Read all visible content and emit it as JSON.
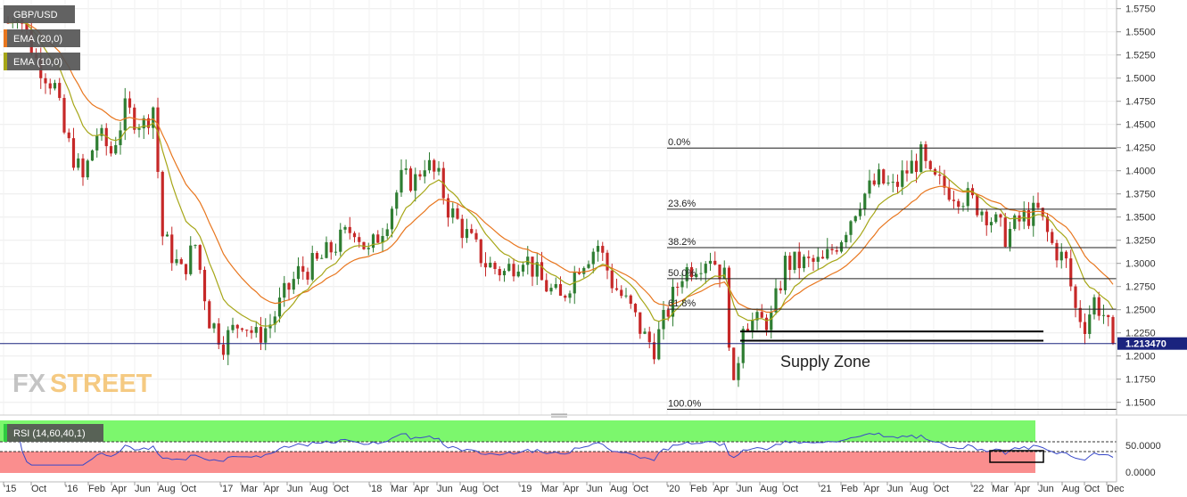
{
  "chart_data": {
    "type": "candlestick",
    "title": "GBP/USD",
    "indicators": [
      {
        "name": "EMA (20,0)",
        "color": "#e8761e"
      },
      {
        "name": "EMA (10,0)",
        "color": "#a6a617"
      }
    ],
    "price_axis": {
      "ticks": [
        "1.5750",
        "1.5500",
        "1.5250",
        "1.5000",
        "1.4750",
        "1.4500",
        "1.4250",
        "1.4000",
        "1.3750",
        "1.3500",
        "1.3250",
        "1.3000",
        "1.2750",
        "1.2500",
        "1.2250",
        "1.2000",
        "1.1750",
        "1.1500"
      ],
      "ylim": [
        1.135,
        1.585
      ],
      "current_price": "1.213470",
      "current_value": 1.21347
    },
    "time_axis": {
      "ticks": [
        "'15",
        "Oct",
        "'16",
        "Feb",
        "Apr",
        "Jun",
        "Aug",
        "Oct",
        "'17",
        "Mar",
        "Apr",
        "Jun",
        "Aug",
        "Oct",
        "'18",
        "Mar",
        "Apr",
        "Jun",
        "Aug",
        "Oct",
        "'19",
        "Mar",
        "Apr",
        "Jun",
        "Aug",
        "Oct",
        "'20",
        "Feb",
        "Apr",
        "Jun",
        "Aug",
        "Oct",
        "'21",
        "Feb",
        "Apr",
        "Jun",
        "Aug",
        "Oct",
        "'22",
        "Mar",
        "Apr",
        "Jun",
        "Aug",
        "Oct",
        "Dec"
      ]
    },
    "price_path": [
      {
        "t": 0,
        "p": 1.56
      },
      {
        "t": 2,
        "p": 1.575
      },
      {
        "t": 6,
        "p": 1.52
      },
      {
        "t": 10,
        "p": 1.49
      },
      {
        "t": 12,
        "p": 1.44
      },
      {
        "t": 16,
        "p": 1.39
      },
      {
        "t": 19,
        "p": 1.44
      },
      {
        "t": 22,
        "p": 1.42
      },
      {
        "t": 25,
        "p": 1.465
      },
      {
        "t": 29,
        "p": 1.45
      },
      {
        "t": 31,
        "p": 1.47
      },
      {
        "t": 33,
        "p": 1.33
      },
      {
        "t": 37,
        "p": 1.29
      },
      {
        "t": 40,
        "p": 1.32
      },
      {
        "t": 43,
        "p": 1.24
      },
      {
        "t": 46,
        "p": 1.215
      },
      {
        "t": 50,
        "p": 1.24
      },
      {
        "t": 53,
        "p": 1.22
      },
      {
        "t": 56,
        "p": 1.235
      },
      {
        "t": 59,
        "p": 1.265
      },
      {
        "t": 62,
        "p": 1.29
      },
      {
        "t": 66,
        "p": 1.3
      },
      {
        "t": 70,
        "p": 1.32
      },
      {
        "t": 74,
        "p": 1.34
      },
      {
        "t": 77,
        "p": 1.31
      },
      {
        "t": 81,
        "p": 1.35
      },
      {
        "t": 84,
        "p": 1.39
      },
      {
        "t": 87,
        "p": 1.39
      },
      {
        "t": 89,
        "p": 1.41
      },
      {
        "t": 92,
        "p": 1.39
      },
      {
        "t": 94,
        "p": 1.36
      },
      {
        "t": 98,
        "p": 1.33
      },
      {
        "t": 102,
        "p": 1.3
      },
      {
        "t": 106,
        "p": 1.29
      },
      {
        "t": 110,
        "p": 1.31
      },
      {
        "t": 114,
        "p": 1.28
      },
      {
        "t": 118,
        "p": 1.26
      },
      {
        "t": 122,
        "p": 1.3
      },
      {
        "t": 126,
        "p": 1.32
      },
      {
        "t": 129,
        "p": 1.28
      },
      {
        "t": 133,
        "p": 1.25
      },
      {
        "t": 136,
        "p": 1.22
      },
      {
        "t": 138,
        "p": 1.21
      },
      {
        "t": 141,
        "p": 1.25
      },
      {
        "t": 144,
        "p": 1.29
      },
      {
        "t": 147,
        "p": 1.3
      },
      {
        "t": 150,
        "p": 1.31
      },
      {
        "t": 153,
        "p": 1.285
      },
      {
        "t": 155,
        "p": 1.16
      },
      {
        "t": 157,
        "p": 1.24
      },
      {
        "t": 160,
        "p": 1.235
      },
      {
        "t": 163,
        "p": 1.24
      },
      {
        "t": 166,
        "p": 1.3
      },
      {
        "t": 170,
        "p": 1.3
      },
      {
        "t": 174,
        "p": 1.3
      },
      {
        "t": 178,
        "p": 1.33
      },
      {
        "t": 182,
        "p": 1.37
      },
      {
        "t": 186,
        "p": 1.39
      },
      {
        "t": 189,
        "p": 1.38
      },
      {
        "t": 192,
        "p": 1.4
      },
      {
        "t": 195,
        "p": 1.415
      },
      {
        "t": 197,
        "p": 1.39
      },
      {
        "t": 201,
        "p": 1.38
      },
      {
        "t": 205,
        "p": 1.37
      },
      {
        "t": 209,
        "p": 1.355
      },
      {
        "t": 213,
        "p": 1.33
      },
      {
        "t": 217,
        "p": 1.35
      },
      {
        "t": 220,
        "p": 1.355
      },
      {
        "t": 223,
        "p": 1.32
      },
      {
        "t": 226,
        "p": 1.3
      },
      {
        "t": 228,
        "p": 1.25
      },
      {
        "t": 230,
        "p": 1.235
      },
      {
        "t": 232,
        "p": 1.26
      },
      {
        "t": 234,
        "p": 1.245
      },
      {
        "t": 236,
        "p": 1.215
      }
    ],
    "fibonacci": [
      {
        "label": "0.0%",
        "value": 1.4245
      },
      {
        "label": "23.6%",
        "value": 1.3585
      },
      {
        "label": "38.2%",
        "value": 1.317
      },
      {
        "label": "50.0%",
        "value": 1.2835
      },
      {
        "label": "61.8%",
        "value": 1.2505
      },
      {
        "label": "100.0%",
        "value": 1.1425
      }
    ],
    "supply_zone": {
      "label": "Supply Zone",
      "upper": 1.2265,
      "lower": 1.2165
    },
    "rsi": {
      "name": "RSI (14,60,40,1)",
      "ticks": [
        "50.0000",
        "0.0000"
      ],
      "upper_level": 60,
      "lower_level": 40
    }
  }
}
